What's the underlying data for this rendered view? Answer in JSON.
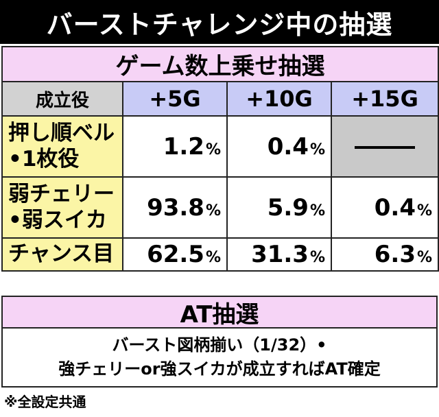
{
  "title": "バーストチャレンジ中の抽選",
  "game_table": {
    "section_title": "ゲーム数上乗せ抽選",
    "columns": [
      "成立役",
      "+5G",
      "+10G",
      "+15G"
    ],
    "percent_sign": "%",
    "rows": [
      {
        "label_lines": [
          "押し順ベル",
          "•1枚役"
        ],
        "values": [
          "1.2",
          "0.4",
          null
        ]
      },
      {
        "label_lines": [
          "弱チェリー",
          "•弱スイカ"
        ],
        "values": [
          "93.8",
          "5.9",
          "0.4"
        ]
      },
      {
        "label_lines": [
          "チャンス目"
        ],
        "values": [
          "62.5",
          "31.3",
          "6.3"
        ]
      }
    ]
  },
  "at": {
    "section_title": "AT抽選",
    "lines": [
      "バースト図柄揃い（1/32）•",
      "強チェリーor強スイカが成立すればAT確定"
    ]
  },
  "footnote": "※全設定共通"
}
